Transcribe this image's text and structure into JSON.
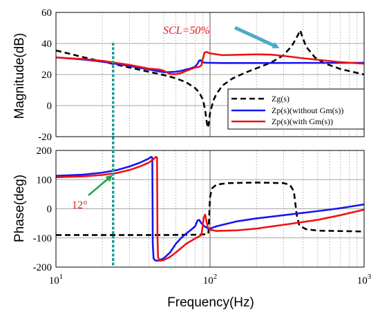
{
  "chart_data": [
    {
      "type": "line",
      "xscale": "log",
      "xlim": [
        10,
        1000
      ],
      "ylim": [
        -20,
        60
      ],
      "ylabel": "Magnitude(dB)",
      "yticks": [
        "-20",
        "0",
        "20",
        "40",
        "60"
      ],
      "grid": true,
      "legend_placement": "lower-right",
      "series": [
        {
          "name": "Zg(s)",
          "color": "#000000",
          "style": "dashed",
          "points": [
            [
              10,
              35.5
            ],
            [
              12,
              33.6
            ],
            [
              15,
              31.2
            ],
            [
              20,
              28.3
            ],
            [
              25,
              26.3
            ],
            [
              30,
              24.5
            ],
            [
              40,
              21.8
            ],
            [
              50,
              19.7
            ],
            [
              60,
              17.6
            ],
            [
              70,
              15
            ],
            [
              80,
              11.3
            ],
            [
              85,
              8.5
            ],
            [
              90,
              3.8
            ],
            [
              93,
              -3
            ],
            [
              95,
              -10
            ],
            [
              96.5,
              -14.2
            ],
            [
              98,
              -12
            ],
            [
              100,
              -5
            ],
            [
              105,
              3.2
            ],
            [
              110,
              7.5
            ],
            [
              120,
              12.8
            ],
            [
              140,
              17.5
            ],
            [
              170,
              21.3
            ],
            [
              200,
              24
            ],
            [
              250,
              27.8
            ],
            [
              300,
              32.5
            ],
            [
              340,
              38.5
            ],
            [
              370,
              45
            ],
            [
              385,
              48.5
            ],
            [
              395,
              45
            ],
            [
              420,
              38
            ],
            [
              480,
              31
            ],
            [
              550,
              27.3
            ],
            [
              700,
              23.6
            ],
            [
              1000,
              20
            ]
          ]
        },
        {
          "name": "Zp(s)(without Gm(s))",
          "color": "#1515f0",
          "style": "solid",
          "points": [
            [
              10,
              31
            ],
            [
              15,
              29.7
            ],
            [
              20,
              28.3
            ],
            [
              30,
              25.5
            ],
            [
              40,
              23.3
            ],
            [
              45,
              22.3
            ],
            [
              50,
              21.5
            ],
            [
              55,
              21.6
            ],
            [
              60,
              21.8
            ],
            [
              65,
              22.4
            ],
            [
              70,
              23.2
            ],
            [
              75,
              24
            ],
            [
              80,
              25
            ],
            [
              83,
              27
            ],
            [
              85,
              29
            ],
            [
              87,
              29.2
            ],
            [
              89,
              27.8
            ],
            [
              95,
              27.6
            ],
            [
              120,
              27.4
            ],
            [
              200,
              27.4
            ],
            [
              400,
              27.5
            ],
            [
              700,
              27.5
            ],
            [
              1000,
              27.6
            ]
          ]
        },
        {
          "name": "Zp(s)(with Gm(s))",
          "color": "#ee1111",
          "style": "solid",
          "points": [
            [
              10,
              31
            ],
            [
              15,
              30
            ],
            [
              20,
              28.8
            ],
            [
              30,
              26.2
            ],
            [
              40,
              23.8
            ],
            [
              47,
              23.2
            ],
            [
              50,
              22.5
            ],
            [
              55,
              20.3
            ],
            [
              60,
              20.2
            ],
            [
              65,
              21
            ],
            [
              70,
              22.3
            ],
            [
              75,
              23.5
            ],
            [
              80,
              24.5
            ],
            [
              85,
              24.9
            ],
            [
              88,
              26
            ],
            [
              90,
              30.5
            ],
            [
              92,
              34
            ],
            [
              95,
              34.5
            ],
            [
              100,
              33.6
            ],
            [
              120,
              32.5
            ],
            [
              150,
              32.7
            ],
            [
              200,
              33
            ],
            [
              250,
              32.8
            ],
            [
              300,
              32
            ],
            [
              400,
              30.5
            ],
            [
              500,
              29.5
            ],
            [
              700,
              28
            ],
            [
              1000,
              27
            ]
          ]
        }
      ],
      "annotations": [
        {
          "text": "SCL=50%",
          "color": "#e8141b"
        }
      ]
    },
    {
      "type": "line",
      "xscale": "log",
      "xlim": [
        10,
        1000
      ],
      "ylim": [
        -200,
        200
      ],
      "xlabel": "Frequency(Hz)",
      "ylabel": "Phase(deg)",
      "xticks": [
        {
          "base": "10",
          "exp": "1",
          "value": 10
        },
        {
          "base": "10",
          "exp": "2",
          "value": 100
        },
        {
          "base": "10",
          "exp": "3",
          "value": 1000
        }
      ],
      "yticks": [
        "-200",
        "-100",
        "0",
        "100",
        "200"
      ],
      "grid": true,
      "series": [
        {
          "name": "Zg(s)",
          "color": "#000000",
          "style": "dashed",
          "points": [
            [
              10,
              -90
            ],
            [
              50,
              -90
            ],
            [
              80,
              -89
            ],
            [
              90,
              -88
            ],
            [
              96,
              -87
            ],
            [
              97.5,
              -85
            ],
            [
              98.5,
              -40
            ],
            [
              100,
              40
            ],
            [
              103,
              70
            ],
            [
              110,
              83
            ],
            [
              130,
              88
            ],
            [
              200,
              90
            ],
            [
              300,
              88
            ],
            [
              330,
              82
            ],
            [
              350,
              60
            ],
            [
              365,
              -20
            ],
            [
              380,
              -58
            ],
            [
              420,
              -70
            ],
            [
              500,
              -75
            ],
            [
              1000,
              -78
            ]
          ]
        },
        {
          "name": "Zp(s)(without Gm(s))",
          "color": "#1515f0",
          "style": "solid",
          "points": [
            [
              10,
              113
            ],
            [
              15,
              117
            ],
            [
              20,
              124
            ],
            [
              25,
              133
            ],
            [
              30,
              145
            ],
            [
              35,
              158
            ],
            [
              40,
              172
            ],
            [
              41.5,
              178
            ],
            [
              42.2,
              176
            ],
            [
              42.5,
              -120
            ],
            [
              43,
              -170
            ],
            [
              44,
              -177
            ],
            [
              46,
              -178
            ],
            [
              50,
              -170
            ],
            [
              55,
              -150
            ],
            [
              60,
              -120
            ],
            [
              65,
              -100
            ],
            [
              70,
              -85
            ],
            [
              75,
              -73
            ],
            [
              80,
              -60
            ],
            [
              83,
              -40
            ],
            [
              85,
              -38
            ],
            [
              88,
              -50
            ],
            [
              92,
              -60
            ],
            [
              96,
              -66
            ],
            [
              100,
              -68
            ],
            [
              110,
              -60
            ],
            [
              150,
              -43
            ],
            [
              200,
              -33
            ],
            [
              300,
              -22
            ],
            [
              500,
              -8
            ],
            [
              700,
              2
            ],
            [
              1000,
              15
            ]
          ]
        },
        {
          "name": "Zp(s)(with Gm(s))",
          "color": "#ee1111",
          "style": "solid",
          "points": [
            [
              10,
              108
            ],
            [
              15,
              111
            ],
            [
              20,
              116
            ],
            [
              25,
              123
            ],
            [
              30,
              133
            ],
            [
              35,
              145
            ],
            [
              40,
              158
            ],
            [
              43,
              170
            ],
            [
              44.5,
              178
            ],
            [
              45.3,
              176
            ],
            [
              45.6,
              -100
            ],
            [
              46,
              -165
            ],
            [
              47,
              -178
            ],
            [
              50,
              -176
            ],
            [
              55,
              -165
            ],
            [
              60,
              -150
            ],
            [
              70,
              -120
            ],
            [
              80,
              -102
            ],
            [
              88,
              -90
            ],
            [
              91,
              -30
            ],
            [
              93,
              -20
            ],
            [
              95,
              -45
            ],
            [
              97,
              -65
            ],
            [
              100,
              -72
            ],
            [
              110,
              -76
            ],
            [
              150,
              -74
            ],
            [
              200,
              -68
            ],
            [
              300,
              -55
            ],
            [
              500,
              -38
            ],
            [
              700,
              -22
            ],
            [
              1000,
              -3
            ]
          ]
        }
      ],
      "annotations": [
        {
          "text": "12°",
          "color": "#e8141b"
        }
      ]
    }
  ],
  "marker_line": {
    "x": 23.5,
    "color": "#1f9a9a"
  }
}
